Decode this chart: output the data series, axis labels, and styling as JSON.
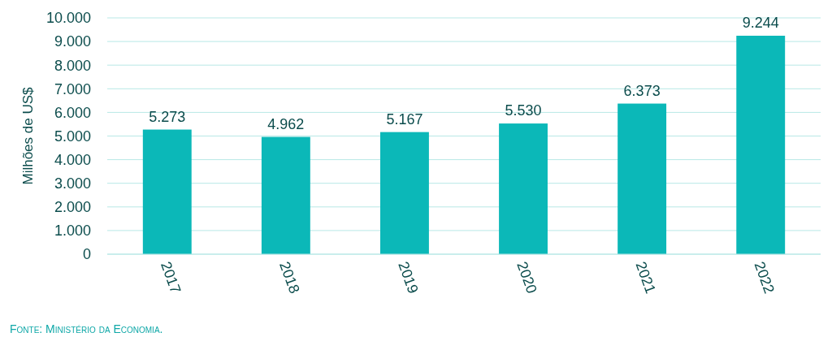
{
  "chart_data": {
    "type": "bar",
    "ylabel": "Milhões de US$",
    "categories": [
      "2017",
      "2018",
      "2019",
      "2020",
      "2021",
      "2022"
    ],
    "values": [
      5273,
      4962,
      5167,
      5530,
      6373,
      9244
    ],
    "color": "#0bb8b8",
    "value_labels": [
      "5.273",
      "4.962",
      "5.167",
      "5.530",
      "6.373",
      "9.244"
    ],
    "ylim": [
      0,
      10000
    ],
    "yticks": [
      {
        "value": 0,
        "label": "0"
      },
      {
        "value": 1000,
        "label": "1.000"
      },
      {
        "value": 2000,
        "label": "2.000"
      },
      {
        "value": 3000,
        "label": "3.000"
      },
      {
        "value": 4000,
        "label": "4.000"
      },
      {
        "value": 5000,
        "label": "5.000"
      },
      {
        "value": 6000,
        "label": "6.000"
      },
      {
        "value": 7000,
        "label": "7.000"
      },
      {
        "value": 8000,
        "label": "8.000"
      },
      {
        "value": 9000,
        "label": "9.000"
      },
      {
        "value": 10000,
        "label": "10.000"
      }
    ],
    "grid": "y",
    "annotations": [
      "Fonte: Ministério da Economia."
    ]
  }
}
